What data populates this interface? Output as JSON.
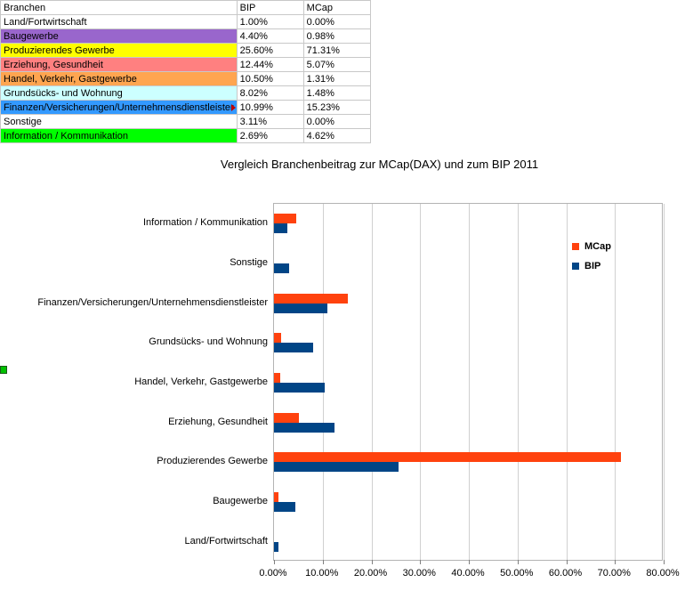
{
  "table": {
    "headers": {
      "col_a": "Branchen",
      "col_b": "BIP",
      "col_c": "MCap"
    },
    "rows": [
      {
        "name": "Land/Fortwirtschaft",
        "bip": "1.00%",
        "mcap": "0.00%",
        "fill": "#FFFFFF",
        "truncated": false
      },
      {
        "name": "Baugewerbe",
        "bip": "4.40%",
        "mcap": "0.98%",
        "fill": "#9966CC",
        "truncated": false
      },
      {
        "name": "Produzierendes Gewerbe",
        "bip": "25.60%",
        "mcap": "71.31%",
        "fill": "#FFFF00",
        "truncated": false
      },
      {
        "name": "Erziehung, Gesundheit",
        "bip": "12.44%",
        "mcap": "5.07%",
        "fill": "#FF8080",
        "truncated": false
      },
      {
        "name": "Handel, Verkehr, Gastgewerbe",
        "bip": "10.50%",
        "mcap": "1.31%",
        "fill": "#FFA550",
        "truncated": false
      },
      {
        "name": "Grundsücks- und Wohnung",
        "bip": "8.02%",
        "mcap": "1.48%",
        "fill": "#CCFFFF",
        "truncated": false
      },
      {
        "name": "Finanzen/Versicherungen/Unternehmensdienstleister",
        "bip": "10.99%",
        "mcap": "15.23%",
        "fill": "#3399FF",
        "truncated": true
      },
      {
        "name": "Sonstige",
        "bip": "3.11%",
        "mcap": "0.00%",
        "fill": "#FFFFFF",
        "truncated": false
      },
      {
        "name": "Information / Kommunikation",
        "bip": "2.69%",
        "mcap": "4.62%",
        "fill": "#00FF00",
        "truncated": false
      }
    ]
  },
  "chart_data": {
    "type": "bar",
    "orientation": "horizontal",
    "title": "Vergleich Branchenbeitrag zur MCap(DAX) und zum BIP 2011",
    "categories": [
      "Information / Kommunikation",
      "Sonstige",
      "Finanzen/Versicherungen/Unternehmensdienstleister",
      "Grundsücks- und Wohnung",
      "Handel, Verkehr, Gastgewerbe",
      "Erziehung, Gesundheit",
      "Produzierendes Gewerbe",
      "Baugewerbe",
      "Land/Fortwirtschaft"
    ],
    "series": [
      {
        "name": "MCap",
        "color": "#FF420E",
        "values": [
          4.62,
          0.0,
          15.23,
          1.48,
          1.31,
          5.07,
          71.31,
          0.98,
          0.0
        ]
      },
      {
        "name": "BIP",
        "color": "#004586",
        "values": [
          2.69,
          3.11,
          10.99,
          8.02,
          10.5,
          12.44,
          25.6,
          4.4,
          1.0
        ]
      }
    ],
    "xlim": [
      0,
      80
    ],
    "x_tick_labels": [
      "0.00%",
      "10.00%",
      "20.00%",
      "30.00%",
      "40.00%",
      "50.00%",
      "60.00%",
      "70.00%",
      "80.00%"
    ],
    "grid": "vertical",
    "legend_position": "right"
  },
  "misc": {
    "green_marker_color": "#00C000"
  }
}
